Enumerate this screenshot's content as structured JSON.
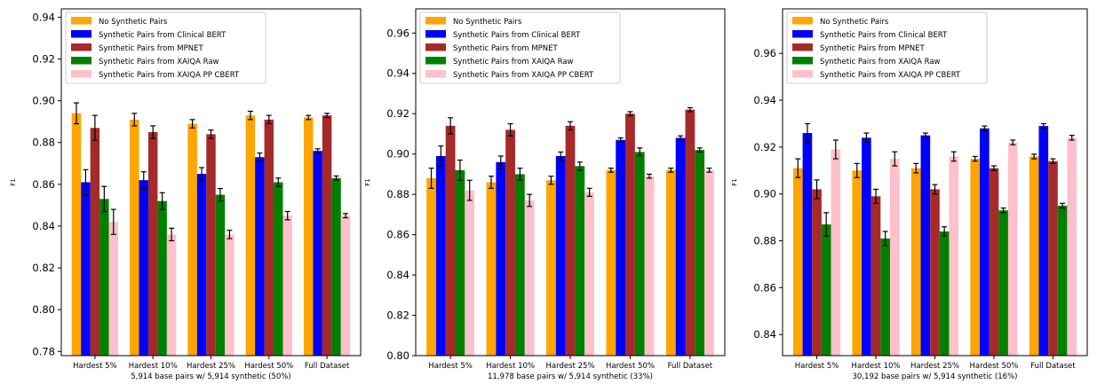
{
  "legend_colors": [
    "#FFA500",
    "#0000FF",
    "#A52A2A",
    "#008000",
    "#FFC0CB"
  ],
  "chart_data": [
    {
      "type": "bar",
      "xlabel": "5,914 base pairs w/ 5,914 synthetic (50%)",
      "ylabel": "F1",
      "ylim": [
        0.778,
        0.944
      ],
      "yticks": [
        0.78,
        0.8,
        0.82,
        0.84,
        0.86,
        0.88,
        0.9,
        0.92,
        0.94
      ],
      "ytick_labels": [
        "0.78",
        "0.80",
        "0.82",
        "0.84",
        "0.86",
        "0.88",
        "0.90",
        "0.92",
        "0.94"
      ],
      "grid": false,
      "legend_position": "top-left",
      "categories": [
        "Hardest 5%",
        "Hardest 10%",
        "Hardest 25%",
        "Hardest 50%",
        "Full Dataset"
      ],
      "series": [
        {
          "name": "No Synthetic Pairs",
          "values": [
            0.894,
            0.891,
            0.889,
            0.893,
            0.892
          ],
          "errors": [
            0.005,
            0.003,
            0.002,
            0.002,
            0.001
          ]
        },
        {
          "name": "Synthetic Pairs from Clinical BERT",
          "values": [
            0.861,
            0.862,
            0.865,
            0.873,
            0.876
          ],
          "errors": [
            0.006,
            0.004,
            0.003,
            0.002,
            0.001
          ]
        },
        {
          "name": "Synthetic Pairs from MPNET",
          "values": [
            0.887,
            0.885,
            0.884,
            0.891,
            0.893
          ],
          "errors": [
            0.006,
            0.003,
            0.002,
            0.002,
            0.001
          ]
        },
        {
          "name": "Synthetic Pairs from XAIQA Raw",
          "values": [
            0.853,
            0.852,
            0.855,
            0.861,
            0.863
          ],
          "errors": [
            0.006,
            0.004,
            0.003,
            0.002,
            0.001
          ]
        },
        {
          "name": "Synthetic Pairs from XAIQA PP CBERT",
          "values": [
            0.842,
            0.836,
            0.836,
            0.845,
            0.845
          ],
          "errors": [
            0.006,
            0.003,
            0.002,
            0.002,
            0.001
          ]
        }
      ]
    },
    {
      "type": "bar",
      "xlabel": "11,978 base pairs w/ 5,914 synthetic (33%)",
      "ylabel": "F1",
      "ylim": [
        0.8,
        0.972
      ],
      "yticks": [
        0.8,
        0.82,
        0.84,
        0.86,
        0.88,
        0.9,
        0.92,
        0.94,
        0.96
      ],
      "ytick_labels": [
        "0.80",
        "0.82",
        "0.84",
        "0.86",
        "0.88",
        "0.90",
        "0.92",
        "0.94",
        "0.96"
      ],
      "grid": false,
      "legend_position": "top-left",
      "categories": [
        "Hardest 5%",
        "Hardest 10%",
        "Hardest 25%",
        "Hardest 50%",
        "Full Dataset"
      ],
      "series": [
        {
          "name": "No Synthetic Pairs",
          "values": [
            0.888,
            0.886,
            0.887,
            0.892,
            0.892
          ],
          "errors": [
            0.005,
            0.003,
            0.002,
            0.001,
            0.001
          ]
        },
        {
          "name": "Synthetic Pairs from Clinical BERT",
          "values": [
            0.899,
            0.896,
            0.899,
            0.907,
            0.908
          ],
          "errors": [
            0.005,
            0.003,
            0.002,
            0.001,
            0.001
          ]
        },
        {
          "name": "Synthetic Pairs from MPNET",
          "values": [
            0.914,
            0.912,
            0.914,
            0.92,
            0.922
          ],
          "errors": [
            0.004,
            0.003,
            0.002,
            0.001,
            0.001
          ]
        },
        {
          "name": "Synthetic Pairs from XAIQA Raw",
          "values": [
            0.892,
            0.89,
            0.894,
            0.901,
            0.902
          ],
          "errors": [
            0.005,
            0.003,
            0.002,
            0.002,
            0.001
          ]
        },
        {
          "name": "Synthetic Pairs from XAIQA PP CBERT",
          "values": [
            0.882,
            0.877,
            0.881,
            0.889,
            0.892
          ],
          "errors": [
            0.005,
            0.003,
            0.002,
            0.001,
            0.001
          ]
        }
      ]
    },
    {
      "type": "bar",
      "xlabel": "30,192 base pairs w/ 5,914 synthetic (16%)",
      "ylabel": "F1",
      "ylim": [
        0.831,
        0.979
      ],
      "yticks": [
        0.84,
        0.86,
        0.88,
        0.9,
        0.92,
        0.94,
        0.96
      ],
      "ytick_labels": [
        "0.84",
        "0.86",
        "0.88",
        "0.90",
        "0.92",
        "0.94",
        "0.96"
      ],
      "grid": false,
      "legend_position": "top-left",
      "categories": [
        "Hardest 5%",
        "Hardest 10%",
        "Hardest 25%",
        "Hardest 50%",
        "Full Dataset"
      ],
      "series": [
        {
          "name": "No Synthetic Pairs",
          "values": [
            0.911,
            0.91,
            0.911,
            0.915,
            0.916
          ],
          "errors": [
            0.004,
            0.003,
            0.002,
            0.001,
            0.001
          ]
        },
        {
          "name": "Synthetic Pairs from Clinical BERT",
          "values": [
            0.926,
            0.924,
            0.925,
            0.928,
            0.929
          ],
          "errors": [
            0.004,
            0.002,
            0.001,
            0.001,
            0.001
          ]
        },
        {
          "name": "Synthetic Pairs from MPNET",
          "values": [
            0.902,
            0.899,
            0.902,
            0.911,
            0.914
          ],
          "errors": [
            0.004,
            0.003,
            0.002,
            0.001,
            0.001
          ]
        },
        {
          "name": "Synthetic Pairs from XAIQA Raw",
          "values": [
            0.887,
            0.881,
            0.884,
            0.893,
            0.895
          ],
          "errors": [
            0.005,
            0.003,
            0.002,
            0.001,
            0.001
          ]
        },
        {
          "name": "Synthetic Pairs from XAIQA PP CBERT",
          "values": [
            0.919,
            0.915,
            0.916,
            0.922,
            0.924
          ],
          "errors": [
            0.004,
            0.003,
            0.002,
            0.001,
            0.001
          ]
        }
      ]
    }
  ]
}
